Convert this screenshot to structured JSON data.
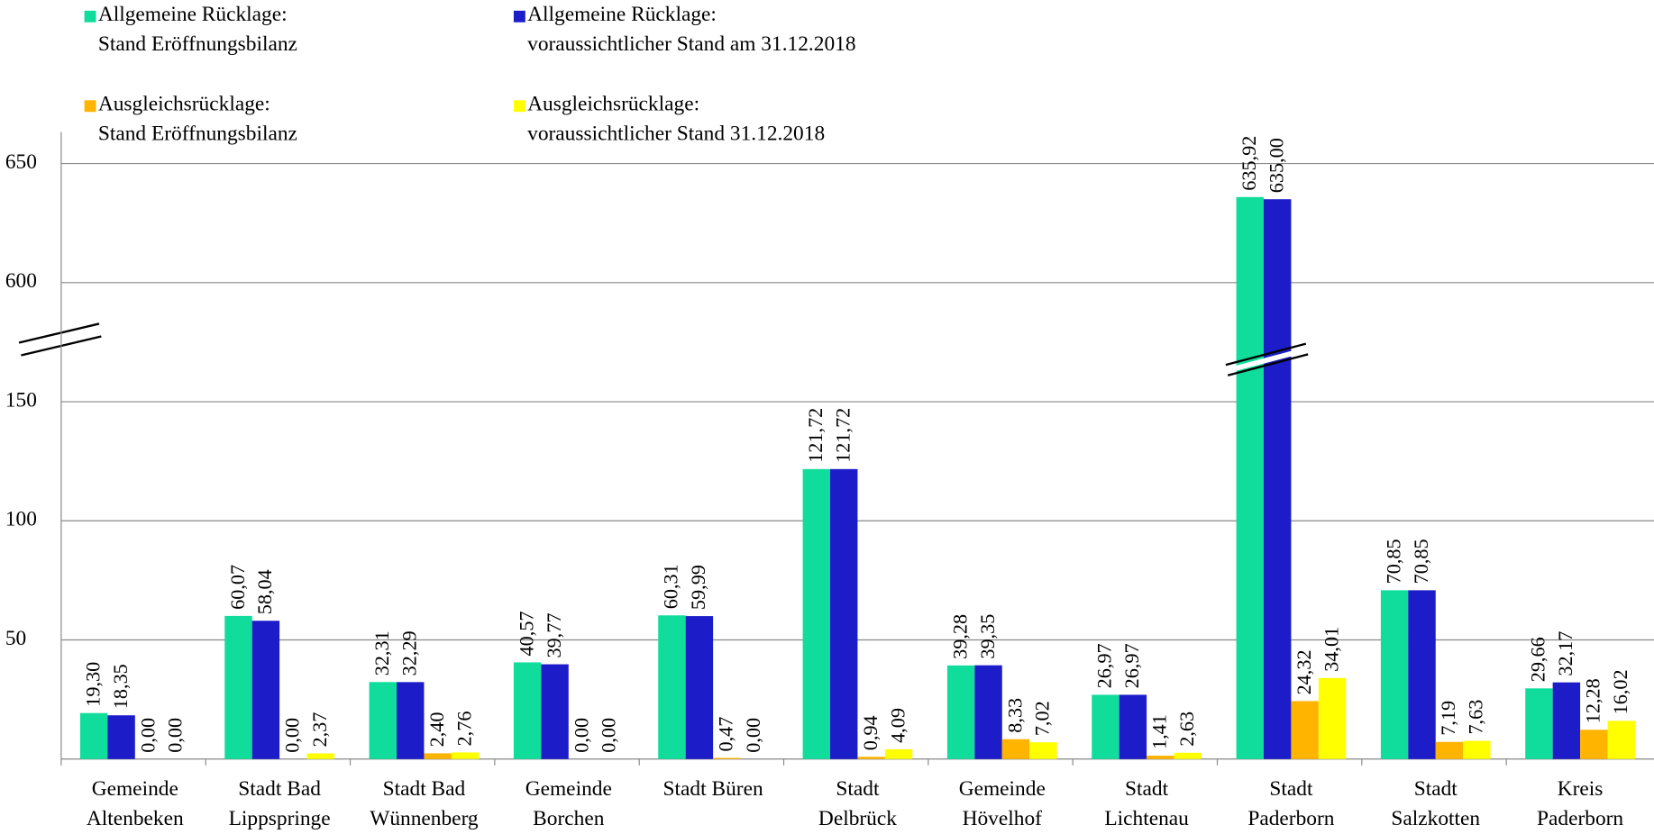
{
  "chart_data": {
    "type": "bar",
    "categories": [
      [
        "Gemeinde",
        "Altenbeken"
      ],
      [
        "Stadt Bad",
        "Lippspringe"
      ],
      [
        "Stadt Bad",
        "Wünnenberg"
      ],
      [
        "Gemeinde",
        "Borchen"
      ],
      [
        "Stadt Büren"
      ],
      [
        "Stadt",
        "Delbrück"
      ],
      [
        "Gemeinde",
        "Hövelhof"
      ],
      [
        "Stadt",
        "Lichtenau"
      ],
      [
        "Stadt",
        "Paderborn"
      ],
      [
        "Stadt",
        "Salzkotten"
      ],
      [
        "Kreis",
        "Paderborn"
      ]
    ],
    "series": [
      {
        "name": [
          "Allgemeine Rücklage:",
          "Stand Eröffnungsbilanz"
        ],
        "color": "#10dc9c",
        "values": [
          19.3,
          60.07,
          32.31,
          40.57,
          60.31,
          121.72,
          39.28,
          26.97,
          635.92,
          70.85,
          29.66
        ],
        "value_labels": [
          "19,30",
          "60,07",
          "32,31",
          "40,57",
          "60,31",
          "121,72",
          "39,28",
          "26,97",
          "635,92",
          "70,85",
          "29,66"
        ]
      },
      {
        "name": [
          "Allgemeine Rücklage:",
          "voraussichtlicher Stand am 31.12.2018"
        ],
        "color": "#1c1cc8",
        "values": [
          18.35,
          58.04,
          32.29,
          39.77,
          59.99,
          121.72,
          39.35,
          26.97,
          635.0,
          70.85,
          32.17
        ],
        "value_labels": [
          "18,35",
          "58,04",
          "32,29",
          "39,77",
          "59,99",
          "121,72",
          "39,35",
          "26,97",
          "635,00",
          "70,85",
          "32,17"
        ]
      },
      {
        "name": [
          "Ausgleichsrücklage:",
          "Stand Eröffnungsbilanz"
        ],
        "color": "#ffb400",
        "values": [
          0.0,
          0.0,
          2.4,
          0.0,
          0.47,
          0.94,
          8.33,
          1.41,
          24.32,
          7.19,
          12.28
        ],
        "value_labels": [
          "0,00",
          "0,00",
          "2,40",
          "0,00",
          "0,47",
          "0,94",
          "8,33",
          "1,41",
          "24,32",
          "7,19",
          "12,28"
        ]
      },
      {
        "name": [
          "Ausgleichsrücklage:",
          "voraussichtlicher Stand 31.12.2018"
        ],
        "color": "#ffff00",
        "values": [
          0.0,
          2.37,
          2.76,
          0.0,
          0.0,
          4.09,
          7.02,
          2.63,
          34.01,
          7.63,
          16.02
        ],
        "value_labels": [
          "0,00",
          "2,37",
          "2,76",
          "0,00",
          "0,00",
          "4,09",
          "7,02",
          "2,63",
          "34,01",
          "7,63",
          "16,02"
        ]
      }
    ],
    "ylim": [
      0,
      650
    ],
    "yticks": [
      50,
      100,
      150,
      600,
      650
    ],
    "axis_break": [
      150,
      600
    ],
    "grid": true
  }
}
